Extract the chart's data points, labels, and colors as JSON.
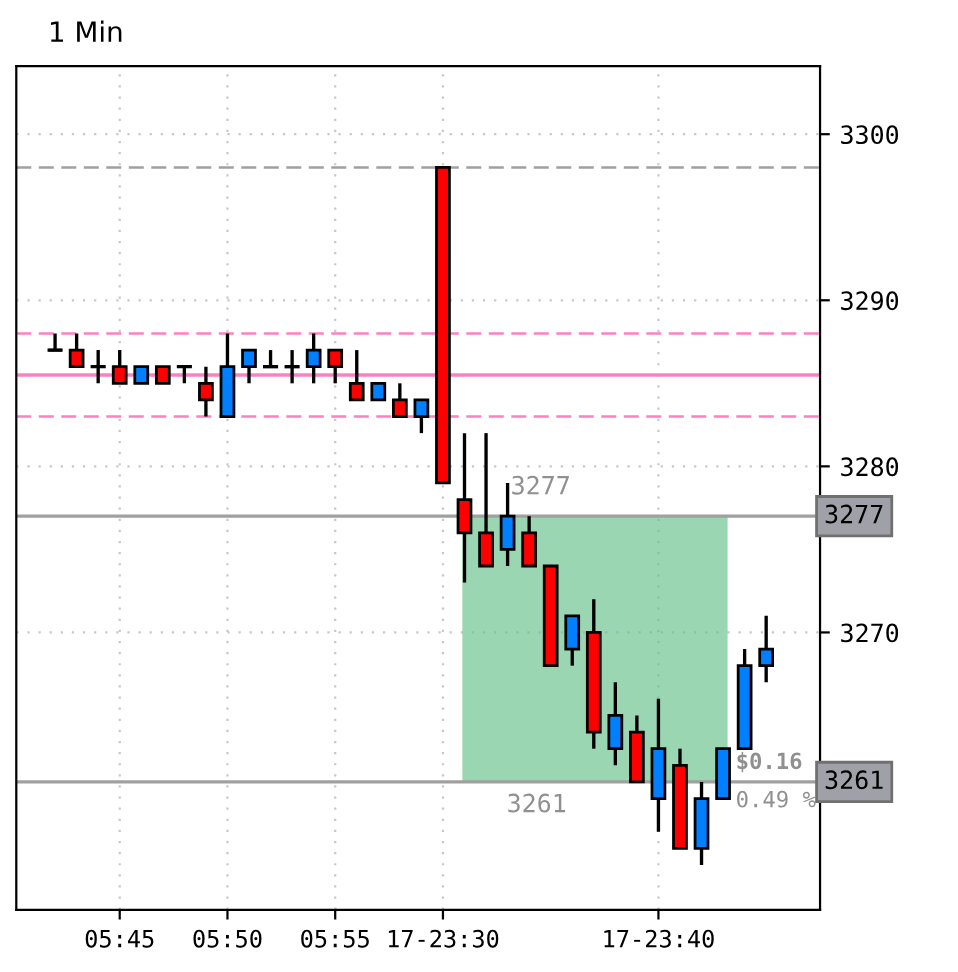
{
  "chart_data": {
    "type": "candlestick",
    "title": "1 Min",
    "categories": [
      null,
      null,
      null,
      "05:45",
      null,
      null,
      null,
      null,
      "05:50",
      null,
      null,
      null,
      null,
      "05:55",
      null,
      null,
      null,
      null,
      "17-23:30",
      null,
      null,
      null,
      null,
      null,
      null,
      null,
      null,
      null,
      "17-23:40",
      null,
      null,
      null,
      null,
      null
    ],
    "ohlc": [
      [
        3287,
        3288,
        3287,
        3287
      ],
      [
        3287,
        3288,
        3286,
        3286
      ],
      [
        3286,
        3287,
        3285,
        3286
      ],
      [
        3286,
        3287,
        3285,
        3285
      ],
      [
        3285,
        3286,
        3285,
        3286
      ],
      [
        3286,
        3286,
        3285,
        3285
      ],
      [
        3286,
        3286,
        3285,
        3286
      ],
      [
        3285,
        3286,
        3283,
        3284
      ],
      [
        3283,
        3288,
        3283,
        3286
      ],
      [
        3286,
        3287,
        3285,
        3287
      ],
      [
        3286,
        3287,
        3286,
        3286
      ],
      [
        3286,
        3287,
        3285,
        3286
      ],
      [
        3286,
        3288,
        3285,
        3287
      ],
      [
        3287,
        3287,
        3285,
        3286
      ],
      [
        3285,
        3287,
        3284,
        3284
      ],
      [
        3284,
        3285,
        3284,
        3285
      ],
      [
        3284,
        3285,
        3283,
        3283
      ],
      [
        3283,
        3284,
        3282,
        3284
      ],
      [
        3298,
        3298,
        3279,
        3279
      ],
      [
        3278,
        3282,
        3273,
        3276
      ],
      [
        3276,
        3282,
        3274,
        3274
      ],
      [
        3275,
        3279,
        3274,
        3277
      ],
      [
        3276,
        3277,
        3274,
        3274
      ],
      [
        3274,
        3274,
        3268,
        3268
      ],
      [
        3269,
        3271,
        3268,
        3271
      ],
      [
        3270,
        3272,
        3263,
        3264
      ],
      [
        3263,
        3267,
        3262,
        3265
      ],
      [
        3264,
        3265,
        3261,
        3261
      ],
      [
        3260,
        3266,
        3258,
        3263
      ],
      [
        3262,
        3263,
        3257,
        3257
      ],
      [
        3257,
        3261,
        3256,
        3260
      ],
      [
        3260,
        3263,
        3260,
        3263
      ],
      [
        3263,
        3269,
        3263,
        3268
      ],
      [
        3268,
        3271,
        3267,
        3269
      ]
    ],
    "colors": [
      "#000000",
      "#ff0000",
      "#000000",
      "#ff0000",
      "#0080ff",
      "#ff0000",
      "#000000",
      "#ff0000",
      "#0080ff",
      "#0080ff",
      "#000000",
      "#000000",
      "#0080ff",
      "#ff0000",
      "#ff0000",
      "#0080ff",
      "#ff0000",
      "#0080ff",
      "#ff0000",
      "#ff0000",
      "#ff0000",
      "#0080ff",
      "#ff0000",
      "#ff0000",
      "#0080ff",
      "#ff0000",
      "#0080ff",
      "#ff0000",
      "#0080ff",
      "#ff0000",
      "#0080ff",
      "#0080ff",
      "#0080ff",
      "#0080ff"
    ],
    "ylim": [
      3253.3,
      3304.1
    ],
    "yticks": [
      3270,
      3280,
      3290,
      3300
    ],
    "grid": true,
    "ref_lines": [
      {
        "axis": "y",
        "value": 3298,
        "color": "#a0a0a0",
        "line_style": "dashed"
      },
      {
        "axis": "y",
        "value": 3288,
        "color": "#ff80c0",
        "line_style": "dashed"
      },
      {
        "axis": "y",
        "value": 3285.5,
        "color": "#ff80c0",
        "line_style": "solid"
      },
      {
        "axis": "y",
        "value": 3283,
        "color": "#ff80c0",
        "line_style": "dashed"
      },
      {
        "axis": "y",
        "value": 3277,
        "label": "3277",
        "color": "#a0a0a0",
        "line_style": "solid"
      },
      {
        "axis": "y",
        "value": 3261,
        "label": "3261",
        "color": "#a0a0a0",
        "line_style": "solid"
      }
    ],
    "bands": [
      {
        "axis": "y",
        "from": 3261,
        "to": 3277,
        "color": "#66c08a"
      }
    ],
    "annotations": [
      "3277",
      "3261",
      "$0.16",
      "0.49 %"
    ]
  }
}
